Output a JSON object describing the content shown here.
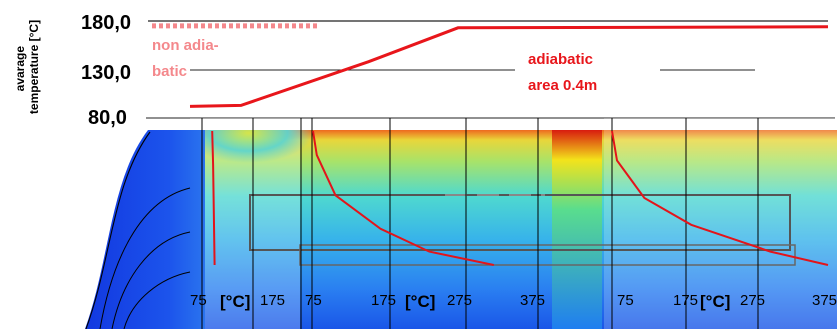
{
  "chart_data": [
    {
      "type": "line",
      "ylabel": "avarage temperature [°C]",
      "y_ticks": [
        "180,0",
        "130,0",
        "80,0"
      ],
      "ylim": [
        80,
        180
      ],
      "series": [
        {
          "name": "adiabatic",
          "color": "#e8161b",
          "points": [
            [
              0.0,
              92
            ],
            [
              0.08,
              93
            ],
            [
              0.28,
              138
            ],
            [
              0.42,
              173
            ],
            [
              1.0,
              174
            ]
          ]
        },
        {
          "name": "non adiabatic",
          "color": "#f4888c",
          "dashed": true,
          "points": [
            [
              0.0,
              175
            ],
            [
              1.0,
              175
            ]
          ]
        }
      ],
      "annotations": [
        {
          "lines": [
            "non adia-",
            "batic"
          ],
          "color": "#f4888c"
        },
        {
          "lines": [
            "adiabatic",
            "area 0.4m"
          ],
          "color": "#e8161b"
        }
      ]
    },
    {
      "type": "line",
      "panels": [
        {
          "x_ticks": [
            "75",
            "[°C]",
            "175",
            "75"
          ],
          "profile": [
            [
              96,
              1.0
            ],
            [
              98,
              0.75
            ],
            [
              99,
              0.5
            ],
            [
              100,
              0.25
            ],
            [
              101,
              0.0
            ]
          ]
        },
        {
          "x_ticks": [
            "175",
            "[°C]",
            "275",
            "375"
          ],
          "profile": [
            [
              75,
              1.0
            ],
            [
              80,
              0.82
            ],
            [
              105,
              0.52
            ],
            [
              165,
              0.27
            ],
            [
              230,
              0.1
            ],
            [
              316,
              0.0
            ]
          ]
        },
        {
          "x_ticks": [
            "75",
            "175",
            "[°C]",
            "275",
            "375"
          ],
          "profile": [
            [
              75,
              1.0
            ],
            [
              82,
              0.78
            ],
            [
              120,
              0.5
            ],
            [
              185,
              0.3
            ],
            [
              295,
              0.1
            ],
            [
              375,
              0.0
            ]
          ]
        }
      ]
    }
  ]
}
